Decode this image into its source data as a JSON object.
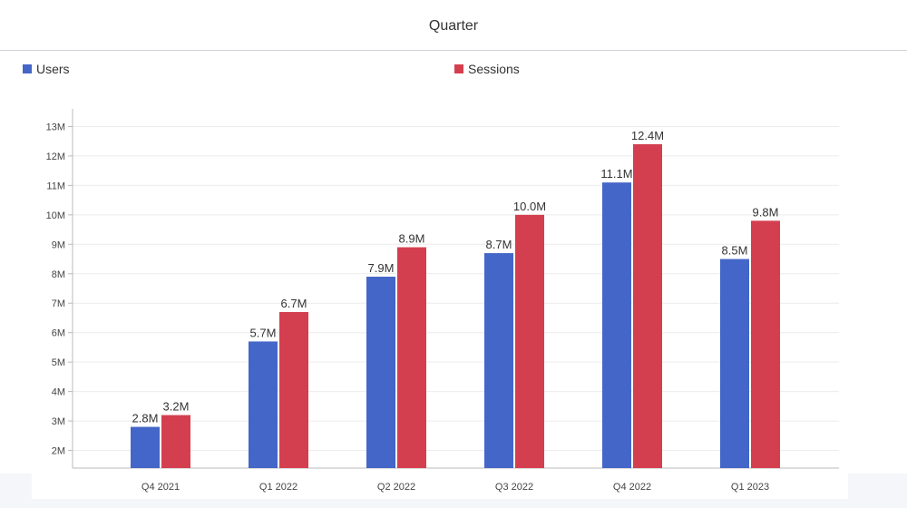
{
  "header": {
    "title": "Quarter"
  },
  "colors": {
    "users": "#4466c8",
    "sessions": "#d43f4f"
  },
  "chart_data": {
    "type": "bar",
    "title": "Quarter",
    "categories": [
      "Q4 2021",
      "Q1 2022",
      "Q2 2022",
      "Q3 2022",
      "Q4 2022",
      "Q1 2023"
    ],
    "series": [
      {
        "name": "Users",
        "values": [
          2.8,
          5.7,
          7.9,
          8.7,
          11.1,
          8.5
        ],
        "labels": [
          "2.8M",
          "5.7M",
          "7.9M",
          "8.7M",
          "11.1M",
          "8.5M"
        ]
      },
      {
        "name": "Sessions",
        "values": [
          3.2,
          6.7,
          8.9,
          10.0,
          12.4,
          9.8
        ],
        "labels": [
          "3.2M",
          "6.7M",
          "8.9M",
          "10.0M",
          "12.4M",
          "9.8M"
        ]
      }
    ],
    "y_ticks": [
      "2M",
      "3M",
      "4M",
      "5M",
      "6M",
      "7M",
      "8M",
      "9M",
      "10M",
      "11M",
      "12M",
      "13M"
    ],
    "ylim": [
      1.4,
      13.6
    ],
    "xlabel": "",
    "ylabel": "",
    "legend": "top-left",
    "grid": true
  }
}
